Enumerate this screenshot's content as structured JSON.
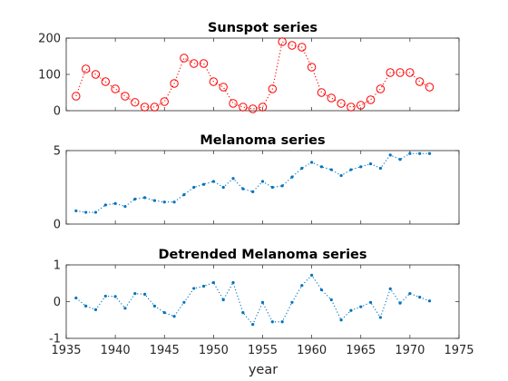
{
  "figure": {
    "xlabel": "year"
  },
  "chart_data": [
    {
      "type": "scatter",
      "title": "Sunspot series",
      "xlabel": "",
      "ylabel": "",
      "xlim": [
        1935,
        1975
      ],
      "ylim": [
        0,
        200
      ],
      "xticks": [
        1935,
        1940,
        1945,
        1950,
        1955,
        1960,
        1965,
        1970,
        1975
      ],
      "yticks": [
        0,
        100,
        200
      ],
      "show_xtick_labels": false,
      "grid": true,
      "marker": "circle",
      "line_style": "dotted",
      "color": "#ff0000",
      "series": [
        {
          "x": [
            1936,
            1937,
            1938,
            1939,
            1940,
            1941,
            1942,
            1943,
            1944,
            1945,
            1946,
            1947,
            1948,
            1949,
            1950,
            1951,
            1952,
            1953,
            1954,
            1955,
            1956,
            1957,
            1958,
            1959,
            1960,
            1961,
            1962,
            1963,
            1964,
            1965,
            1966,
            1967,
            1968,
            1969,
            1970,
            1971,
            1972
          ],
          "values": [
            40,
            115,
            100,
            80,
            60,
            40,
            23,
            10,
            10,
            25,
            75,
            145,
            130,
            130,
            80,
            65,
            20,
            10,
            5,
            10,
            60,
            190,
            180,
            175,
            120,
            50,
            35,
            20,
            10,
            15,
            30,
            60,
            105,
            105,
            105,
            80,
            65
          ]
        }
      ]
    },
    {
      "type": "scatter",
      "title": "Melanoma series",
      "xlabel": "",
      "ylabel": "",
      "xlim": [
        1935,
        1975
      ],
      "ylim": [
        0,
        5
      ],
      "xticks": [
        1935,
        1940,
        1945,
        1950,
        1955,
        1960,
        1965,
        1970,
        1975
      ],
      "yticks": [
        0,
        5
      ],
      "show_xtick_labels": false,
      "grid": true,
      "marker": "dot",
      "line_style": "dotted",
      "color": "#0072bd",
      "series": [
        {
          "x": [
            1936,
            1937,
            1938,
            1939,
            1940,
            1941,
            1942,
            1943,
            1944,
            1945,
            1946,
            1947,
            1948,
            1949,
            1950,
            1951,
            1952,
            1953,
            1954,
            1955,
            1956,
            1957,
            1958,
            1959,
            1960,
            1961,
            1962,
            1963,
            1964,
            1965,
            1966,
            1967,
            1968,
            1969,
            1970,
            1971,
            1972
          ],
          "values": [
            0.9,
            0.8,
            0.8,
            1.3,
            1.4,
            1.2,
            1.7,
            1.8,
            1.6,
            1.5,
            1.5,
            2.0,
            2.5,
            2.7,
            2.9,
            2.5,
            3.1,
            2.4,
            2.2,
            2.9,
            2.5,
            2.6,
            3.2,
            3.8,
            4.2,
            3.9,
            3.7,
            3.3,
            3.7,
            3.9,
            4.1,
            3.8,
            4.7,
            4.4,
            4.8,
            4.8,
            4.8
          ]
        }
      ]
    },
    {
      "type": "scatter",
      "title": "Detrended Melanoma series",
      "xlabel": "year",
      "ylabel": "",
      "xlim": [
        1935,
        1975
      ],
      "ylim": [
        -1,
        1
      ],
      "xticks": [
        1935,
        1940,
        1945,
        1950,
        1955,
        1960,
        1965,
        1970,
        1975
      ],
      "yticks": [
        -1,
        0,
        1
      ],
      "show_xtick_labels": true,
      "grid": true,
      "marker": "dot",
      "line_style": "dotted",
      "color": "#0072bd",
      "series": [
        {
          "x": [
            1936,
            1937,
            1938,
            1939,
            1940,
            1941,
            1942,
            1943,
            1944,
            1945,
            1946,
            1947,
            1948,
            1949,
            1950,
            1951,
            1952,
            1953,
            1954,
            1955,
            1956,
            1957,
            1958,
            1959,
            1960,
            1961,
            1962,
            1963,
            1964,
            1965,
            1966,
            1967,
            1968,
            1969,
            1970,
            1971,
            1972
          ],
          "values": [
            0.1,
            -0.12,
            -0.22,
            0.15,
            0.14,
            -0.18,
            0.22,
            0.2,
            -0.12,
            -0.3,
            -0.4,
            -0.02,
            0.36,
            0.42,
            0.52,
            0.05,
            0.52,
            -0.3,
            -0.62,
            -0.02,
            -0.55,
            -0.55,
            -0.02,
            0.44,
            0.72,
            0.32,
            0.05,
            -0.5,
            -0.24,
            -0.14,
            -0.02,
            -0.43,
            0.35,
            -0.04,
            0.22,
            0.12,
            0.02
          ]
        }
      ]
    }
  ]
}
